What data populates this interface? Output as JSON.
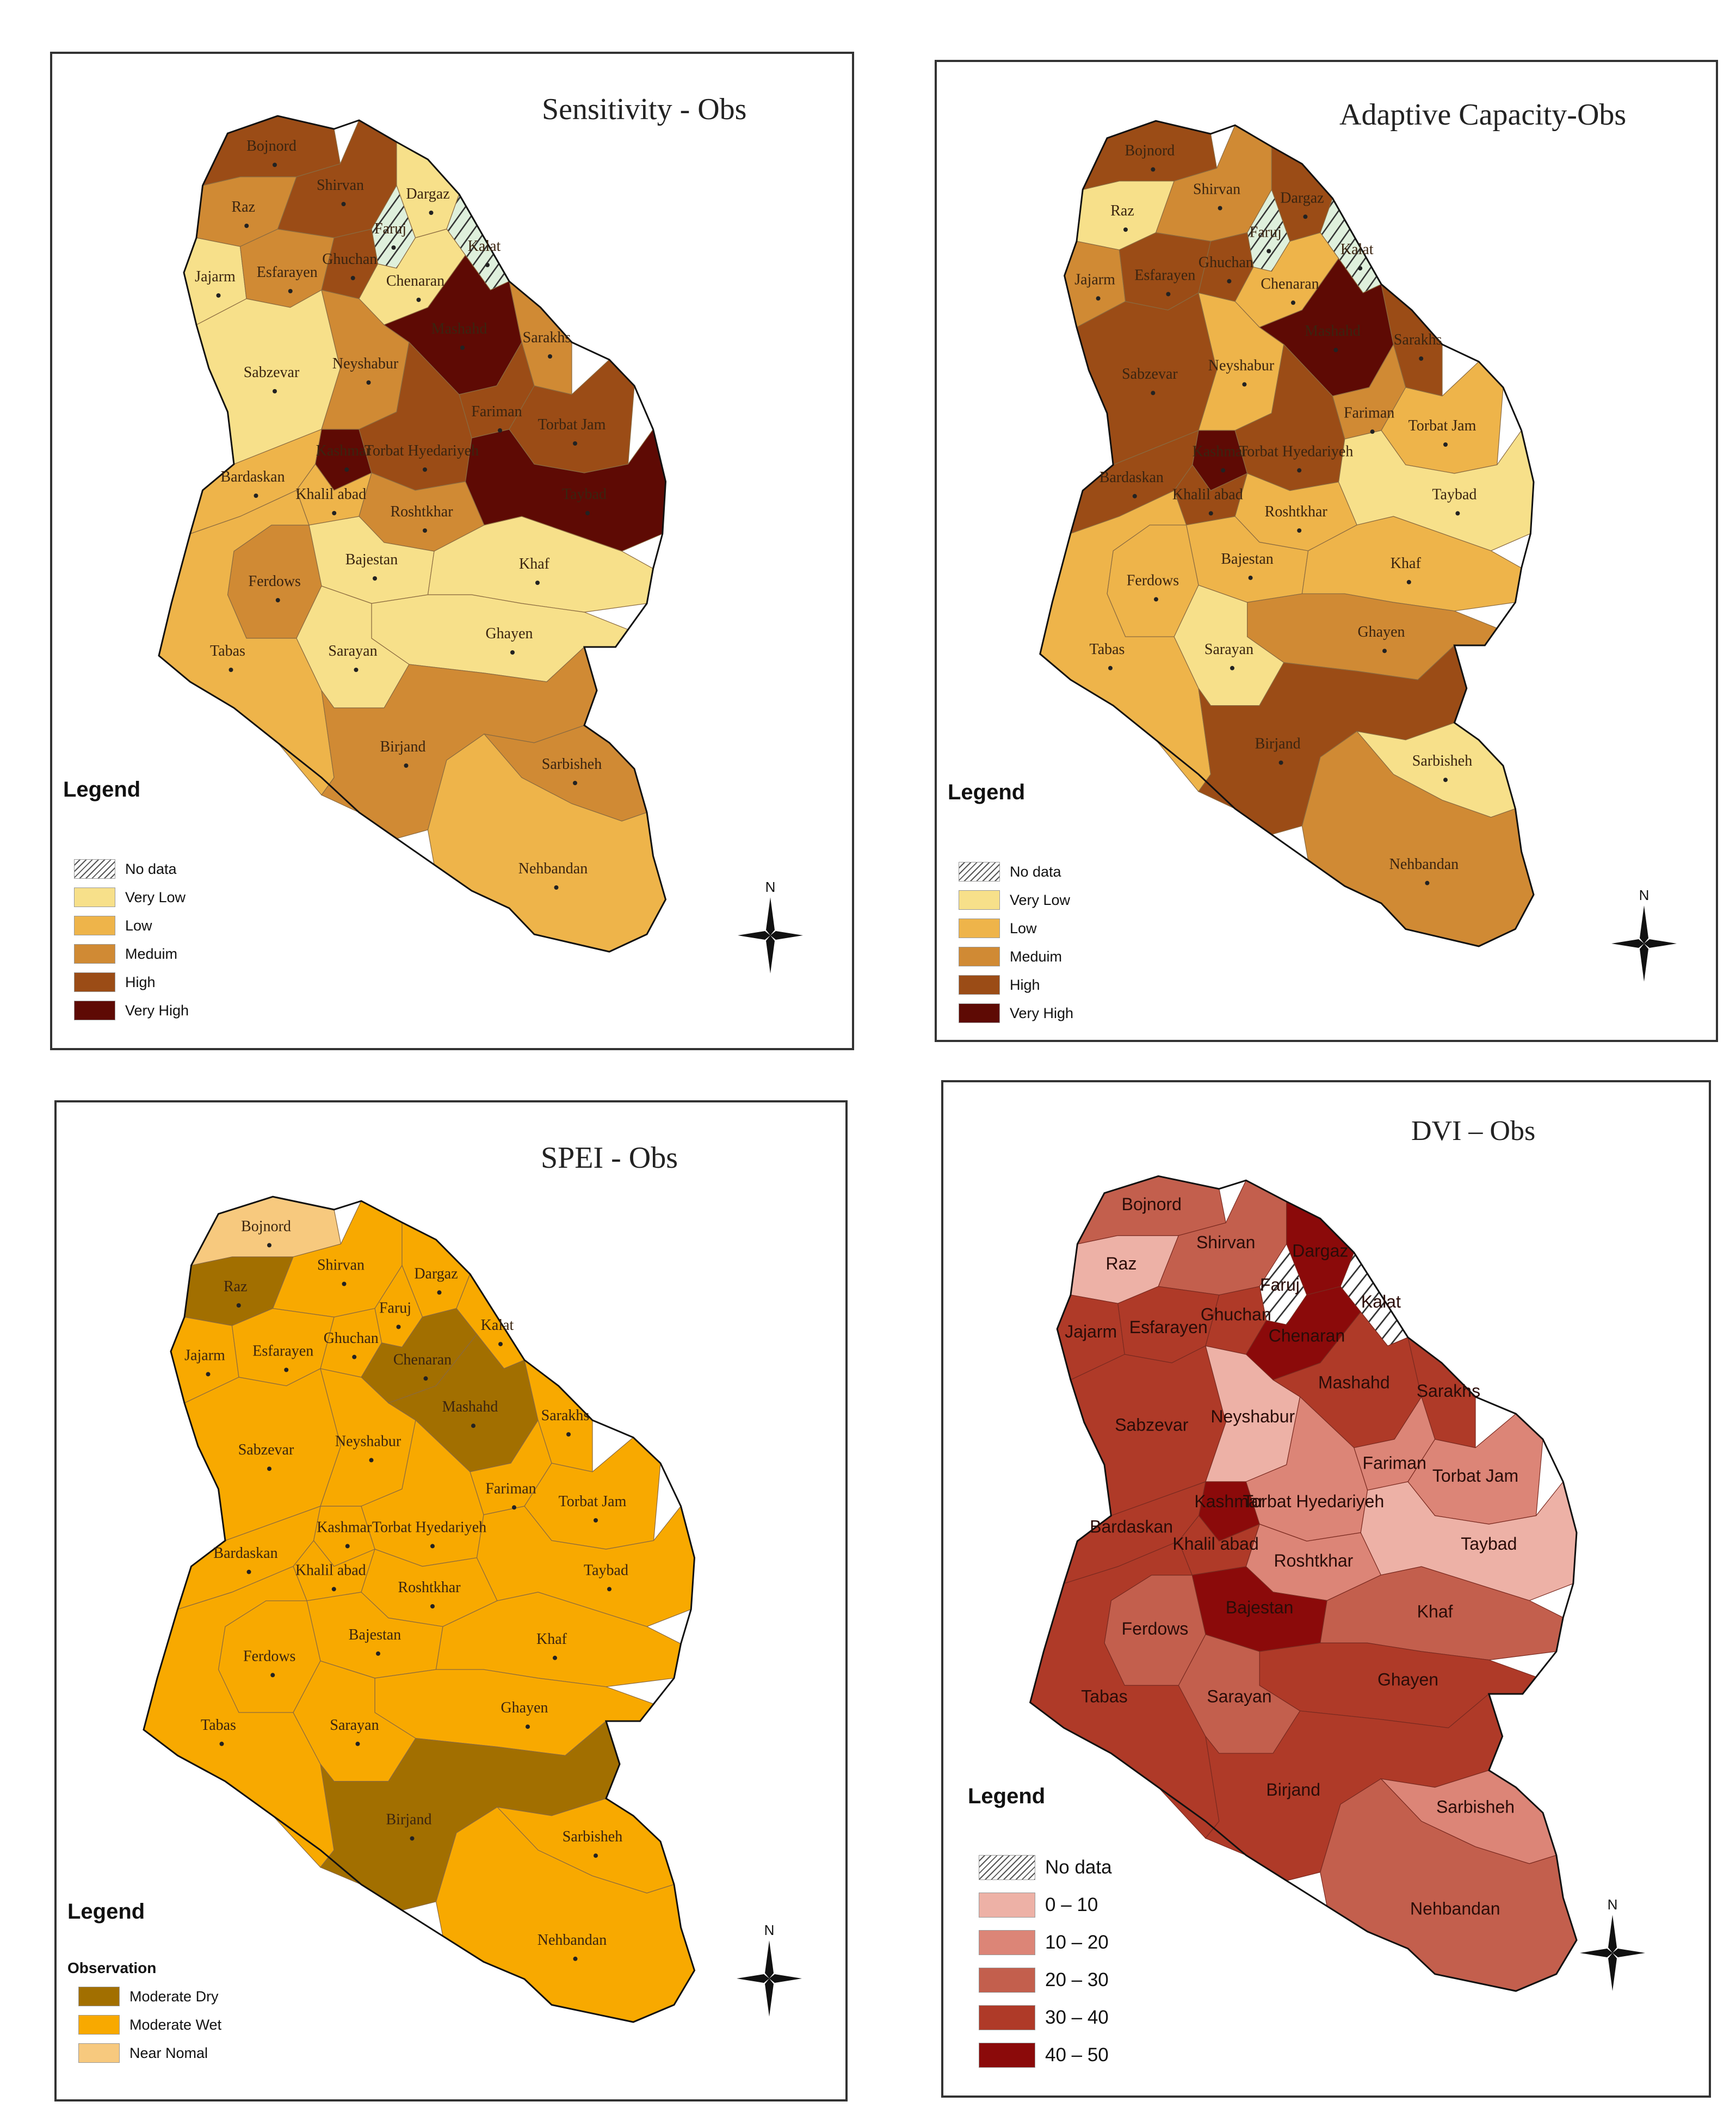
{
  "panels": [
    {
      "id": "sensitivity",
      "title": "Sensitivity - Obs",
      "legend_title": "Legend",
      "legend_subtitle": "",
      "legend": [
        {
          "label": "No data",
          "color": "hatch"
        },
        {
          "label": "Very Low",
          "color": "#F7E08A"
        },
        {
          "label": "Low",
          "color": "#EEB44A"
        },
        {
          "label": "Meduim",
          "color": "#D08A34"
        },
        {
          "label": "High",
          "color": "#9B4C16"
        },
        {
          "label": "Very High",
          "color": "#5E0A04"
        }
      ],
      "north_label": "N",
      "counties": [
        {
          "name": "Bojnord",
          "class": "High"
        },
        {
          "name": "Raz",
          "class": "Meduim"
        },
        {
          "name": "Shirvan",
          "class": "High"
        },
        {
          "name": "Dargaz",
          "class": "Very Low"
        },
        {
          "name": "Faruj",
          "class": "No data"
        },
        {
          "name": "Ghuchan",
          "class": "High"
        },
        {
          "name": "Kalat",
          "class": "No data"
        },
        {
          "name": "Jajarm",
          "class": "Very Low"
        },
        {
          "name": "Esfarayen",
          "class": "Meduim"
        },
        {
          "name": "Chenaran",
          "class": "Very Low"
        },
        {
          "name": "Sabzevar",
          "class": "Very Low"
        },
        {
          "name": "Neyshabur",
          "class": "Meduim"
        },
        {
          "name": "Mashahd",
          "class": "Very High"
        },
        {
          "name": "Sarakhs",
          "class": "Meduim"
        },
        {
          "name": "Fariman",
          "class": "High"
        },
        {
          "name": "Kashmar",
          "class": "Very High"
        },
        {
          "name": "Torbat Hyedariyeh",
          "class": "High"
        },
        {
          "name": "Torbat Jam",
          "class": "High"
        },
        {
          "name": "Bardaskan",
          "class": "Low"
        },
        {
          "name": "Khalil abad",
          "class": "Low"
        },
        {
          "name": "Roshtkhar",
          "class": "Meduim"
        },
        {
          "name": "Taybad",
          "class": "Very High"
        },
        {
          "name": "Bajestan",
          "class": "Very Low"
        },
        {
          "name": "Khaf",
          "class": "Very Low"
        },
        {
          "name": "Ferdows",
          "class": "Meduim"
        },
        {
          "name": "Ghayen",
          "class": "Very Low"
        },
        {
          "name": "Tabas",
          "class": "Low"
        },
        {
          "name": "Sarayan",
          "class": "Very Low"
        },
        {
          "name": "Birjand",
          "class": "Meduim"
        },
        {
          "name": "Sarbisheh",
          "class": "Meduim"
        },
        {
          "name": "Nehbandan",
          "class": "Low"
        }
      ]
    },
    {
      "id": "adaptive",
      "title": "Adaptive Capacity-Obs",
      "legend_title": "Legend",
      "legend_subtitle": "",
      "legend": [
        {
          "label": "No data",
          "color": "hatch"
        },
        {
          "label": "Very Low",
          "color": "#F7E08A"
        },
        {
          "label": "Low",
          "color": "#EEB44A"
        },
        {
          "label": "Meduim",
          "color": "#D08A34"
        },
        {
          "label": "High",
          "color": "#9B4C16"
        },
        {
          "label": "Very High",
          "color": "#5E0A04"
        }
      ],
      "north_label": "N",
      "counties": [
        {
          "name": "Bojnord",
          "class": "High"
        },
        {
          "name": "Raz",
          "class": "Very Low"
        },
        {
          "name": "Shirvan",
          "class": "Meduim"
        },
        {
          "name": "Dargaz",
          "class": "High"
        },
        {
          "name": "Faruj",
          "class": "No data"
        },
        {
          "name": "Ghuchan",
          "class": "High"
        },
        {
          "name": "Kalat",
          "class": "No data"
        },
        {
          "name": "Jajarm",
          "class": "Meduim"
        },
        {
          "name": "Esfarayen",
          "class": "High"
        },
        {
          "name": "Chenaran",
          "class": "Low"
        },
        {
          "name": "Sabzevar",
          "class": "High"
        },
        {
          "name": "Neyshabur",
          "class": "Low"
        },
        {
          "name": "Mashahd",
          "class": "Very High"
        },
        {
          "name": "Sarakhs",
          "class": "High"
        },
        {
          "name": "Fariman",
          "class": "Meduim"
        },
        {
          "name": "Kashmar",
          "class": "Very High"
        },
        {
          "name": "Torbat Hyedariyeh",
          "class": "High"
        },
        {
          "name": "Torbat Jam",
          "class": "Low"
        },
        {
          "name": "Bardaskan",
          "class": "High"
        },
        {
          "name": "Khalil abad",
          "class": "High"
        },
        {
          "name": "Roshtkhar",
          "class": "Low"
        },
        {
          "name": "Taybad",
          "class": "Very Low"
        },
        {
          "name": "Bajestan",
          "class": "Low"
        },
        {
          "name": "Khaf",
          "class": "Low"
        },
        {
          "name": "Ferdows",
          "class": "Low"
        },
        {
          "name": "Ghayen",
          "class": "Meduim"
        },
        {
          "name": "Tabas",
          "class": "Low"
        },
        {
          "name": "Sarayan",
          "class": "Very Low"
        },
        {
          "name": "Birjand",
          "class": "High"
        },
        {
          "name": "Sarbisheh",
          "class": "Very Low"
        },
        {
          "name": "Nehbandan",
          "class": "Meduim"
        }
      ]
    },
    {
      "id": "spei",
      "title": "SPEI - Obs",
      "legend_title": "Legend",
      "legend_subtitle": "Observation",
      "legend": [
        {
          "label": "Moderate Dry",
          "color": "#A26F00"
        },
        {
          "label": "Moderate Wet",
          "color": "#F8A900"
        },
        {
          "label": "Near Nomal",
          "color": "#F7C97E"
        }
      ],
      "north_label": "N",
      "counties": [
        {
          "name": "Bojnord",
          "class": "Near Nomal"
        },
        {
          "name": "Raz",
          "class": "Moderate Dry"
        },
        {
          "name": "Shirvan",
          "class": "Moderate Wet"
        },
        {
          "name": "Dargaz",
          "class": "Moderate Wet"
        },
        {
          "name": "Faruj",
          "class": "Moderate Wet"
        },
        {
          "name": "Ghuchan",
          "class": "Moderate Wet"
        },
        {
          "name": "Kalat",
          "class": "Moderate Wet"
        },
        {
          "name": "Jajarm",
          "class": "Moderate Wet"
        },
        {
          "name": "Esfarayen",
          "class": "Moderate Wet"
        },
        {
          "name": "Chenaran",
          "class": "Moderate Dry"
        },
        {
          "name": "Sabzevar",
          "class": "Moderate Wet"
        },
        {
          "name": "Neyshabur",
          "class": "Moderate Wet"
        },
        {
          "name": "Mashahd",
          "class": "Moderate Dry"
        },
        {
          "name": "Sarakhs",
          "class": "Moderate Wet"
        },
        {
          "name": "Fariman",
          "class": "Moderate Wet"
        },
        {
          "name": "Kashmar",
          "class": "Moderate Wet"
        },
        {
          "name": "Torbat Hyedariyeh",
          "class": "Moderate Wet"
        },
        {
          "name": "Torbat Jam",
          "class": "Moderate Wet"
        },
        {
          "name": "Bardaskan",
          "class": "Moderate Wet"
        },
        {
          "name": "Khalil abad",
          "class": "Moderate Wet"
        },
        {
          "name": "Roshtkhar",
          "class": "Moderate Wet"
        },
        {
          "name": "Taybad",
          "class": "Moderate Wet"
        },
        {
          "name": "Bajestan",
          "class": "Moderate Wet"
        },
        {
          "name": "Khaf",
          "class": "Moderate Wet"
        },
        {
          "name": "Ferdows",
          "class": "Moderate Wet"
        },
        {
          "name": "Ghayen",
          "class": "Moderate Wet"
        },
        {
          "name": "Tabas",
          "class": "Moderate Wet"
        },
        {
          "name": "Sarayan",
          "class": "Moderate Wet"
        },
        {
          "name": "Birjand",
          "class": "Moderate Dry"
        },
        {
          "name": "Sarbisheh",
          "class": "Moderate Wet"
        },
        {
          "name": "Nehbandan",
          "class": "Moderate Wet"
        }
      ]
    },
    {
      "id": "dvi",
      "title": "DVI – Obs",
      "legend_title": "Legend",
      "legend_subtitle": "",
      "legend": [
        {
          "label": "No data",
          "color": "hatch"
        },
        {
          "label": "0 – 10",
          "color": "#EDB1A6"
        },
        {
          "label": "10 – 20",
          "color": "#DC8577"
        },
        {
          "label": "20 – 30",
          "color": "#C35F4D"
        },
        {
          "label": "30 – 40",
          "color": "#AF3A28"
        },
        {
          "label": "40 – 50",
          "color": "#8B0A0A"
        }
      ],
      "north_label": "N",
      "counties": [
        {
          "name": "Raz",
          "class": "0 – 10"
        },
        {
          "name": "Bojnord",
          "class": "20 – 30"
        },
        {
          "name": "Shirvan",
          "class": "20 – 30"
        },
        {
          "name": "Dargaz",
          "class": "40 – 50"
        },
        {
          "name": "Faruj",
          "class": "No data"
        },
        {
          "name": "Ghuchan",
          "class": "30 – 40"
        },
        {
          "name": "Kalat",
          "class": "No data"
        },
        {
          "name": "Jajarm",
          "class": "30 – 40"
        },
        {
          "name": "Esfarayen",
          "class": "30 – 40"
        },
        {
          "name": "Chenaran",
          "class": "40 – 50"
        },
        {
          "name": "Sabzevar",
          "class": "30 – 40"
        },
        {
          "name": "Neyshabur",
          "class": "0 – 10"
        },
        {
          "name": "Mashahd",
          "class": "30 – 40"
        },
        {
          "name": "Sarakhs",
          "class": "30 – 40"
        },
        {
          "name": "Fariman",
          "class": "10 – 20"
        },
        {
          "name": "Kashmar",
          "class": "40 – 50"
        },
        {
          "name": "Torbat Hyedariyeh",
          "class": "10 – 20"
        },
        {
          "name": "Torbat Jam",
          "class": "10 – 20"
        },
        {
          "name": "Bardaskan",
          "class": "30 – 40"
        },
        {
          "name": "Khalil abad",
          "class": "30 – 40"
        },
        {
          "name": "Roshtkhar",
          "class": "10 – 20"
        },
        {
          "name": "Taybad",
          "class": "0 – 10"
        },
        {
          "name": "Bajestan",
          "class": "40 – 50"
        },
        {
          "name": "Khaf",
          "class": "20 – 30"
        },
        {
          "name": "Ferdows",
          "class": "20 – 30"
        },
        {
          "name": "Ghayen",
          "class": "30 – 40"
        },
        {
          "name": "Tabas",
          "class": "30 – 40"
        },
        {
          "name": "Sarayan",
          "class": "20 – 30"
        },
        {
          "name": "Birjand",
          "class": "30 – 40"
        },
        {
          "name": "Sarbisheh",
          "class": "10 – 20"
        },
        {
          "name": "Nehbandan",
          "class": "20 – 30"
        }
      ]
    }
  ]
}
